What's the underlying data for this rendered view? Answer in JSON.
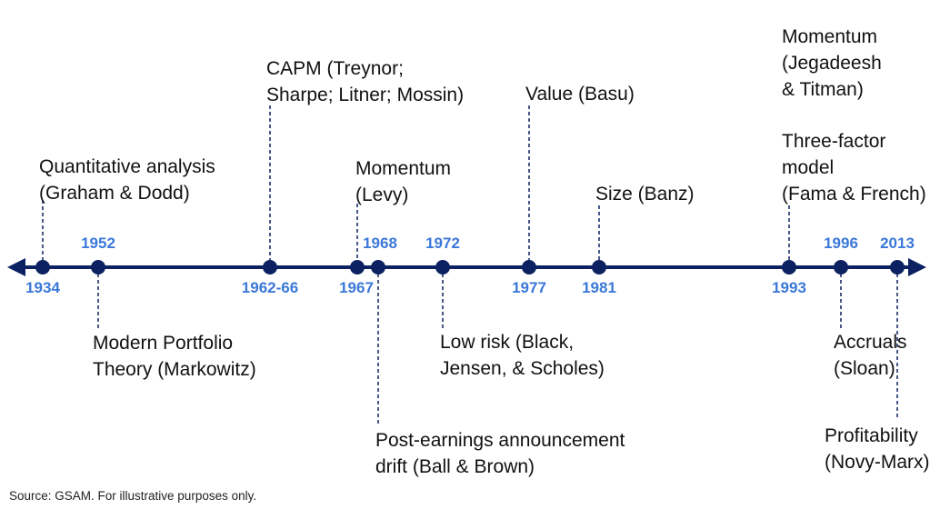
{
  "colors": {
    "axis": "#0b2161",
    "year": "#3b78d8",
    "text": "#111111"
  },
  "events": [
    {
      "year": "1934",
      "lines": [
        "Quantitative analysis",
        "(Graham & Dodd)"
      ]
    },
    {
      "year": "1952",
      "lines": [
        "Modern Portfolio",
        "Theory (Markowitz)"
      ]
    },
    {
      "year": "1962-66",
      "lines": [
        "CAPM (Treynor;",
        "Sharpe; Litner; Mossin)"
      ]
    },
    {
      "year": "1967",
      "lines": [
        "Momentum",
        "(Levy)"
      ]
    },
    {
      "year": "1968",
      "lines": [
        "Post-earnings announcement",
        "drift (Ball & Brown)"
      ]
    },
    {
      "year": "1972",
      "lines": [
        "Low risk (Black,",
        "Jensen, & Scholes)"
      ]
    },
    {
      "year": "1977",
      "lines": [
        "Value (Basu)"
      ]
    },
    {
      "year": "1981",
      "lines": [
        "Size (Banz)"
      ]
    },
    {
      "year": "1993",
      "lines": [
        "Three-factor",
        "model",
        "(Fama & French)"
      ],
      "extra_lines": [
        "Momentum",
        "(Jegadeesh",
        "& Titman)"
      ]
    },
    {
      "year": "1996",
      "lines": [
        "Accruals",
        "(Sloan)"
      ]
    },
    {
      "year": "2013",
      "lines": [
        "Profitability",
        "(Novy-Marx)"
      ]
    }
  ],
  "footer": {
    "source": "Source: GSAM. For illustrative purposes only."
  }
}
